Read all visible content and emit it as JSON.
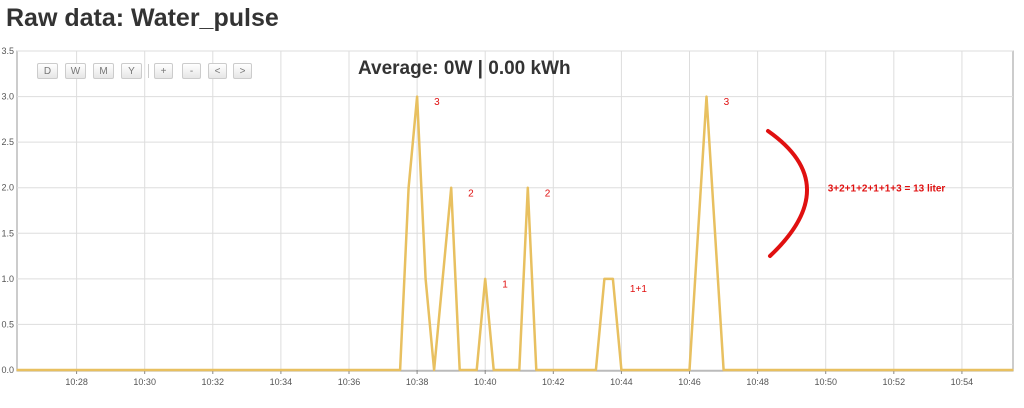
{
  "page": {
    "title": "Raw data: Water_pulse"
  },
  "toolbar": {
    "buttons": [
      {
        "label": "D",
        "name": "day-button"
      },
      {
        "label": "W",
        "name": "week-button"
      },
      {
        "label": "M",
        "name": "month-button"
      },
      {
        "label": "Y",
        "name": "year-button"
      },
      {
        "label": "+",
        "name": "zoom-in-button"
      },
      {
        "label": "-",
        "name": "zoom-out-button"
      },
      {
        "label": "<",
        "name": "previous-button"
      },
      {
        "label": ">",
        "name": "next-button"
      }
    ]
  },
  "summary": {
    "average": "Average: 0W | 0.00 kWh"
  },
  "colors": {
    "series": "#e8c060",
    "annotation": "#e01010",
    "grid": "#dddddd",
    "axis": "#888888",
    "frame": "#999999"
  },
  "chart_data": {
    "type": "line",
    "title": "Average: 0W | 0.00 kWh",
    "xlabel": "",
    "ylabel": "",
    "grid": true,
    "legend": "none",
    "x_tick_labels": [
      "10:28",
      "10:30",
      "10:32",
      "10:34",
      "10:36",
      "10:38",
      "10:40",
      "10:42",
      "10:44",
      "10:46",
      "10:48",
      "10:50",
      "10:52",
      "10:54"
    ],
    "y_tick_labels": [
      "0.0",
      "0.5",
      "1.0",
      "1.5",
      "2.0",
      "2.5",
      "3.0",
      "3.5"
    ],
    "xlim": [
      "10:26:15",
      "10:55:30"
    ],
    "ylim": [
      0,
      3.5
    ],
    "series": [
      {
        "x": [
          "10:26:15",
          "10:37:30",
          "10:37:45",
          "10:38:00",
          "10:38:15",
          "10:38:30",
          "10:39:00",
          "10:39:15",
          "10:39:45",
          "10:40:00",
          "10:40:15",
          "10:41:00",
          "10:41:15",
          "10:41:30",
          "10:43:15",
          "10:43:30",
          "10:43:45",
          "10:44:00",
          "10:46:00",
          "10:46:30",
          "10:47:00",
          "10:55:30"
        ],
        "y": [
          0,
          0,
          2,
          3,
          1,
          0,
          2,
          0,
          0,
          1,
          0,
          0,
          2,
          0,
          0,
          1,
          1,
          0,
          0,
          3,
          0,
          0
        ]
      }
    ],
    "annotations": [
      {
        "text": "3",
        "x": "10:38:30",
        "y": 2.95
      },
      {
        "text": "2",
        "x": "10:39:30",
        "y": 1.95
      },
      {
        "text": "1",
        "x": "10:40:30",
        "y": 0.95
      },
      {
        "text": "2",
        "x": "10:41:45",
        "y": 1.95
      },
      {
        "text": "1+1",
        "x": "10:44:15",
        "y": 0.9
      },
      {
        "text": "3",
        "x": "10:47:00",
        "y": 2.95
      },
      {
        "text": "3+2+1+2+1+1+3 = 13 liter",
        "x": "10:50:00",
        "y": 2.0
      }
    ]
  }
}
